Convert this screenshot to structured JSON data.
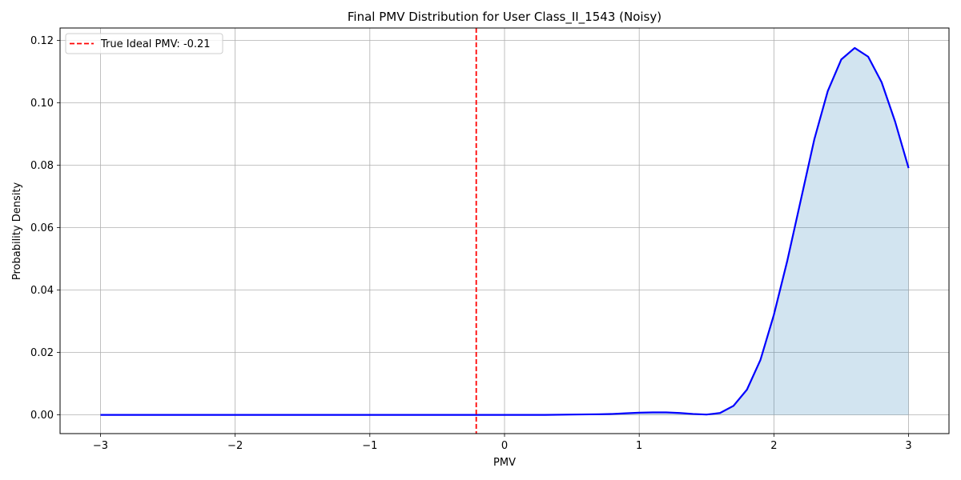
{
  "chart_data": {
    "type": "line",
    "title": "Final PMV Distribution for User Class_II_1543 (Noisy)",
    "xlabel": "PMV",
    "ylabel": "Probability Density",
    "xlim": [
      -3.3,
      3.3
    ],
    "ylim": [
      -0.006,
      0.124
    ],
    "xticks": [
      -3,
      -2,
      -1,
      0,
      1,
      2,
      3
    ],
    "xtick_labels": [
      "−3",
      "−2",
      "−1",
      "0",
      "1",
      "2",
      "3"
    ],
    "yticks": [
      0.0,
      0.02,
      0.04,
      0.06,
      0.08,
      0.1,
      0.12
    ],
    "ytick_labels": [
      "0.00",
      "0.02",
      "0.04",
      "0.06",
      "0.08",
      "0.10",
      "0.12"
    ],
    "grid": true,
    "legend_position": "top-left",
    "series": [
      {
        "name": "",
        "color": "#0000ff",
        "fill_color": "#1f77b4",
        "filled": true,
        "x": [
          -3.0,
          -2.5,
          -2.0,
          -1.5,
          -1.0,
          -0.5,
          0.0,
          0.3,
          0.5,
          0.7,
          0.8,
          0.9,
          1.0,
          1.1,
          1.2,
          1.3,
          1.4,
          1.5,
          1.6,
          1.7,
          1.8,
          1.9,
          2.0,
          2.1,
          2.2,
          2.3,
          2.4,
          2.5,
          2.6,
          2.7,
          2.8,
          2.9,
          3.0
        ],
        "y": [
          0.0,
          0.0,
          0.0,
          0.0,
          0.0,
          0.0,
          0.0,
          0.0,
          0.0001,
          0.0002,
          0.0003,
          0.0005,
          0.0007,
          0.0008,
          0.0008,
          0.0006,
          0.0003,
          0.0001,
          0.0006,
          0.0029,
          0.0081,
          0.0176,
          0.0321,
          0.0495,
          0.0689,
          0.0883,
          0.1038,
          0.1139,
          0.1176,
          0.1148,
          0.1066,
          0.094,
          0.0791
        ]
      }
    ],
    "reference_lines": [
      {
        "label": "True Ideal PMV: -0.21",
        "x": -0.21,
        "color": "#ff0000",
        "style": "dashed"
      }
    ]
  }
}
